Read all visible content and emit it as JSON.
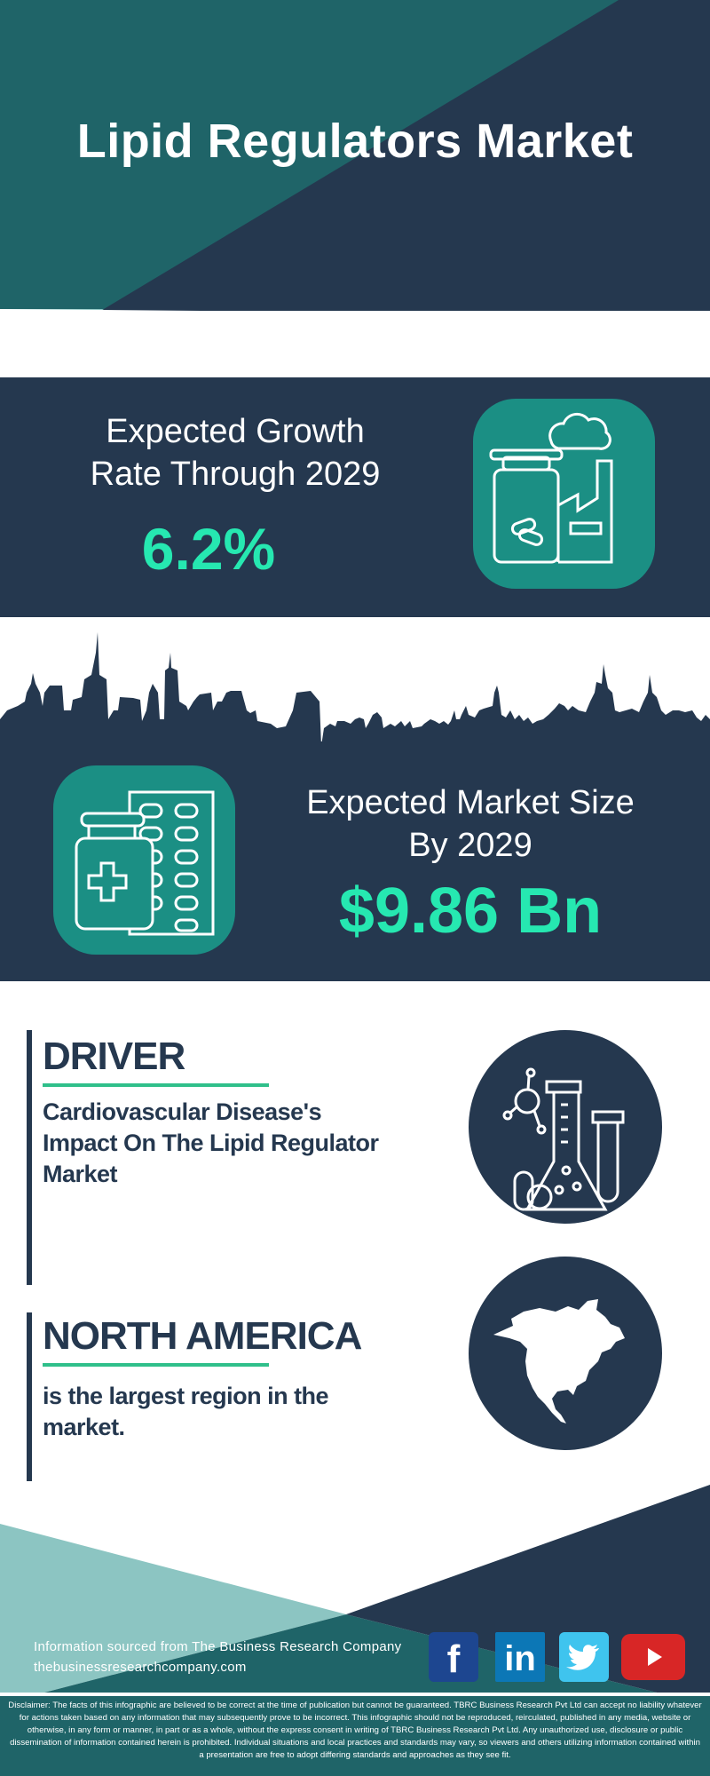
{
  "header": {
    "title": "Lipid Regulators Market"
  },
  "growth": {
    "line1": "Expected Growth",
    "line2": "Rate Through 2029",
    "value": "6.2%",
    "icon": "medicine-factory-icon"
  },
  "market_size": {
    "line1": "Expected Market Size",
    "line2": "By 2029",
    "value": "$9.86 Bn",
    "icon": "medicine-bottle-pills-icon"
  },
  "driver": {
    "heading": "DRIVER",
    "text_lines": [
      "Cardiovascular Disease's",
      "Impact On The Lipid Regulator",
      "Market"
    ],
    "icon": "lab-flask-icon"
  },
  "region": {
    "heading": "NORTH AMERICA",
    "text_lines": [
      "is the largest region in the",
      "market."
    ],
    "icon": "north-america-map-icon"
  },
  "footer": {
    "source": "Information sourced from The Business Research Company",
    "website": "thebusinessresearchcompany.com",
    "social": [
      {
        "name": "facebook",
        "glyph": "f",
        "color": "#1d4690"
      },
      {
        "name": "linkedin",
        "glyph": "in",
        "color": "#0c77b6"
      },
      {
        "name": "twitter",
        "glyph": "",
        "color": "#3fc4ee"
      },
      {
        "name": "youtube",
        "glyph": "",
        "color": "#d82626"
      }
    ],
    "disclaimer": "Disclaimer: The facts of this infographic are believed to be correct at the time of publication but cannot be guaranteed. TBRC Business Research Pvt Ltd can accept no liability whatever for actions taken based on any information that may subsequently prove to be incorrect. This infographic should not be reproduced, reirculated, published in any media, website or otherwise, in any form or manner, in part or as a whole, without the express consent in writing of TBRC Business Research Pvt Ltd. Any unauthorized use, disclosure or public dissemination of information contained herein is prohibited. Individual situations and local practices and standards may vary, so viewers and others utilizing information contained within a presentation are free to adopt differing standards and approaches as they see fit."
  },
  "colors": {
    "navy": "#25384f",
    "teal": "#1f6468",
    "light_teal": "#8cc5c2",
    "accent_green": "#26e8b1",
    "icon_teal": "#1b8f84"
  }
}
